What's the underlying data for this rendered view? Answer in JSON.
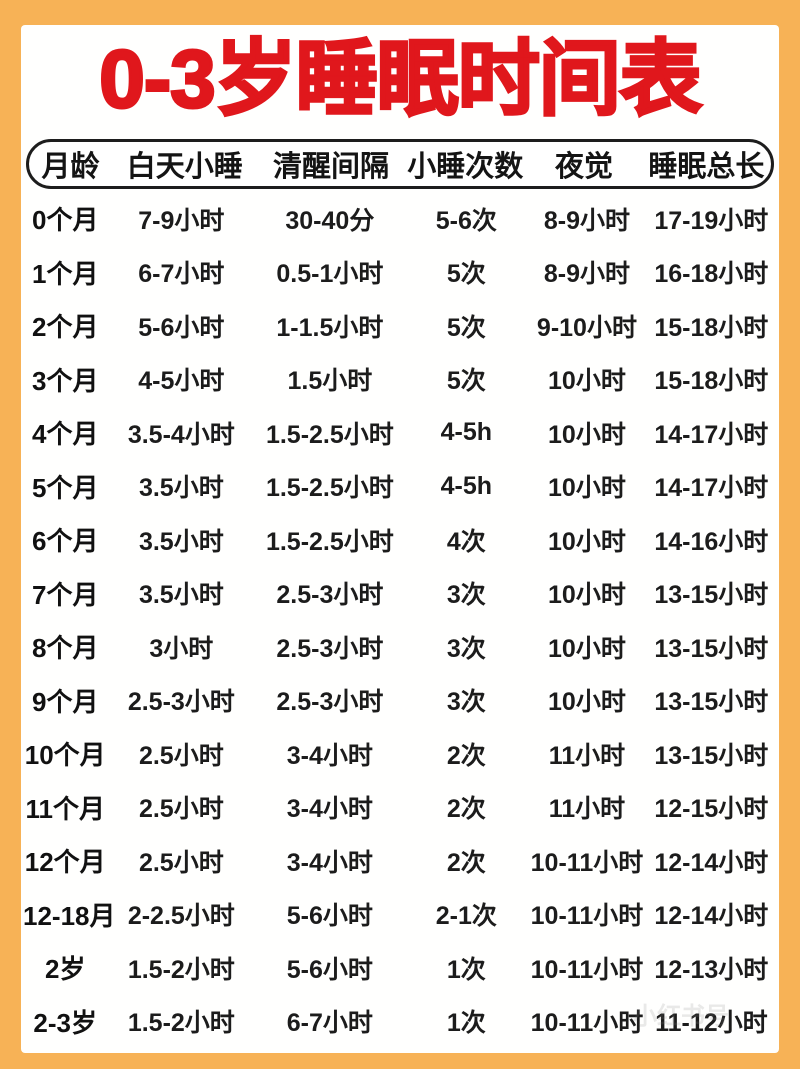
{
  "title": "0-3岁睡眠时间表",
  "watermark": "小红书号",
  "colors": {
    "frame_orange": "#F7B256",
    "panel_white": "#FFFFFE",
    "title_red": "#E0171C",
    "text_black": "#1C1C1C",
    "header_border": "#1D1D1D"
  },
  "chart_data": {
    "type": "table",
    "title": "0-3岁睡眠时间表",
    "columns": [
      "月龄",
      "白天小睡",
      "清醒间隔",
      "小睡次数",
      "夜觉",
      "睡眠总长"
    ],
    "rows": [
      [
        "0个月",
        "7-9小时",
        "30-40分",
        "5-6次",
        "8-9小时",
        "17-19小时"
      ],
      [
        "1个月",
        "6-7小时",
        "0.5-1小时",
        "5次",
        "8-9小时",
        "16-18小时"
      ],
      [
        "2个月",
        "5-6小时",
        "1-1.5小时",
        "5次",
        "9-10小时",
        "15-18小时"
      ],
      [
        "3个月",
        "4-5小时",
        "1.5小时",
        "5次",
        "10小时",
        "15-18小时"
      ],
      [
        "4个月",
        "3.5-4小时",
        "1.5-2.5小时",
        "4-5h",
        "10小时",
        "14-17小时"
      ],
      [
        "5个月",
        "3.5小时",
        "1.5-2.5小时",
        "4-5h",
        "10小时",
        "14-17小时"
      ],
      [
        "6个月",
        "3.5小时",
        "1.5-2.5小时",
        "4次",
        "10小时",
        "14-16小时"
      ],
      [
        "7个月",
        "3.5小时",
        "2.5-3小时",
        "3次",
        "10小时",
        "13-15小时"
      ],
      [
        "8个月",
        "3小时",
        "2.5-3小时",
        "3次",
        "10小时",
        "13-15小时"
      ],
      [
        "9个月",
        "2.5-3小时",
        "2.5-3小时",
        "3次",
        "10小时",
        "13-15小时"
      ],
      [
        "10个月",
        "2.5小时",
        "3-4小时",
        "2次",
        "11小时",
        "13-15小时"
      ],
      [
        "11个月",
        "2.5小时",
        "3-4小时",
        "2次",
        "11小时",
        "12-15小时"
      ],
      [
        "12个月",
        "2.5小时",
        "3-4小时",
        "2次",
        "10-11小时",
        "12-14小时"
      ],
      [
        "12-18月",
        "2-2.5小时",
        "5-6小时",
        "2-1次",
        "10-11小时",
        "12-14小时"
      ],
      [
        "2岁",
        "1.5-2小时",
        "5-6小时",
        "1次",
        "10-11小时",
        "12-13小时"
      ],
      [
        "2-3岁",
        "1.5-2小时",
        "6-7小时",
        "1次",
        "10-11小时",
        "11-12小时"
      ]
    ]
  }
}
